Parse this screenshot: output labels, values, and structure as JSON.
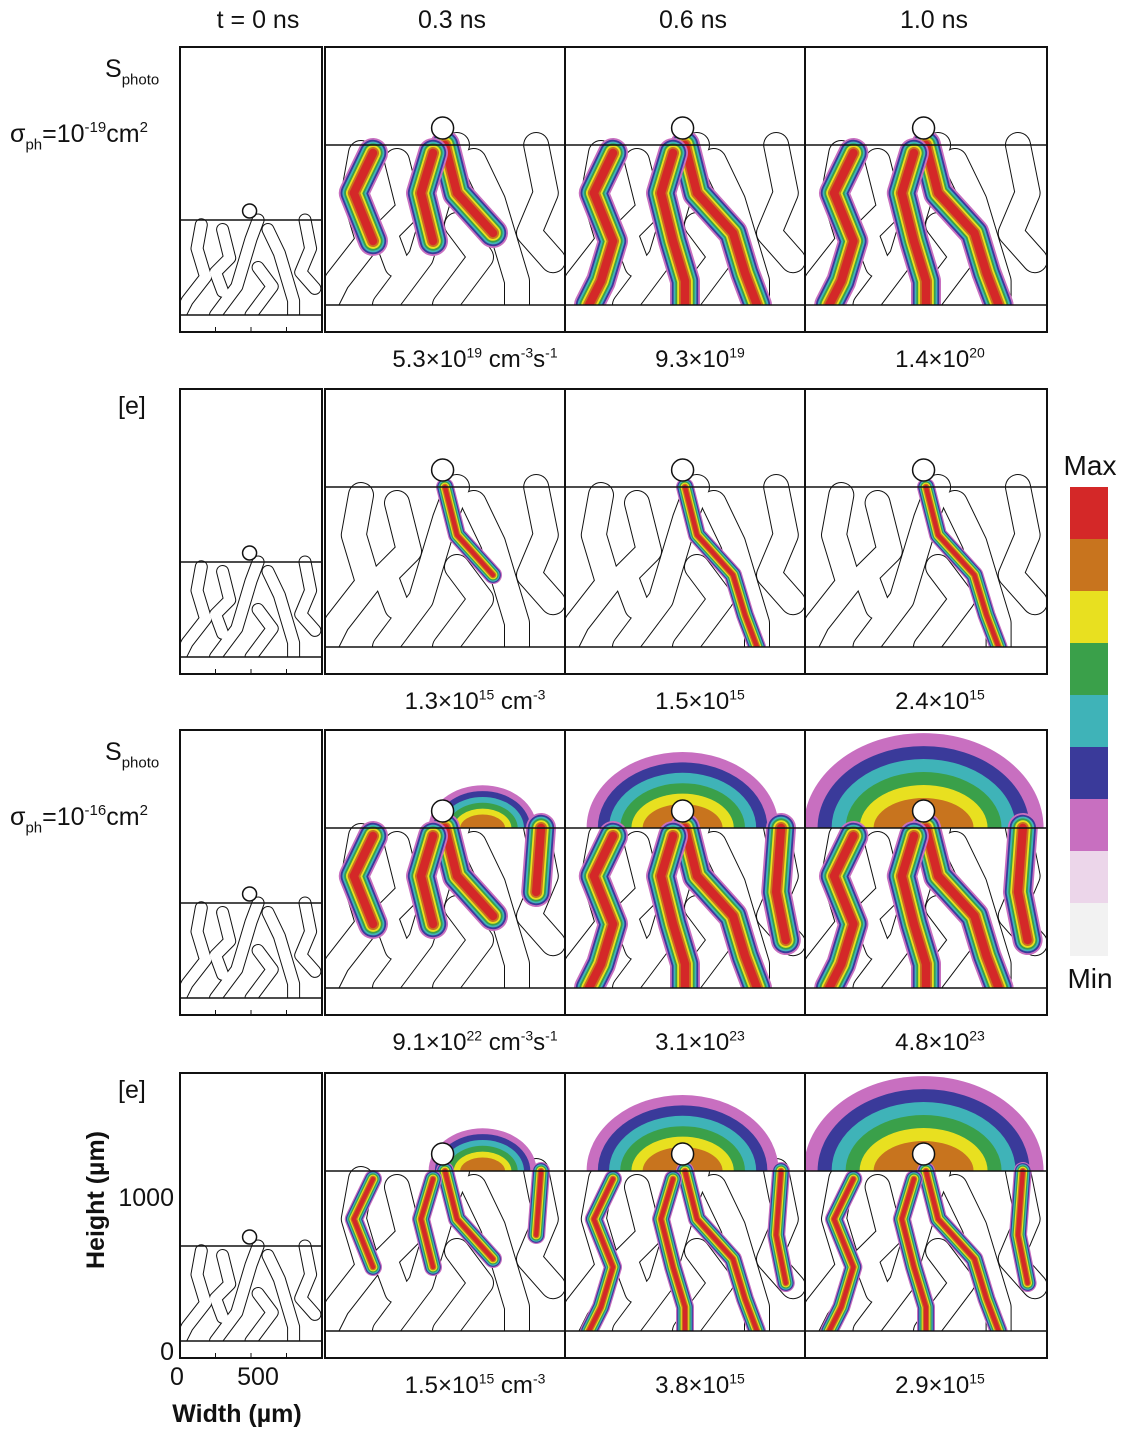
{
  "columns": [
    "t = 0 ns",
    "0.3 ns",
    "0.6 ns",
    "1.0 ns"
  ],
  "rows": [
    {
      "labels": [
        [
          "S",
          {
            "sub": "photo"
          }
        ],
        [
          "σ",
          {
            "sub": "ph"
          },
          "=10",
          {
            "sup": "-19"
          },
          "cm",
          {
            "sup": "2"
          }
        ]
      ],
      "peaks": [
        [
          "5.3×10",
          {
            "sup": "19"
          },
          " cm",
          {
            "sup": "-3"
          },
          "s",
          {
            "sup": "-1"
          }
        ],
        [
          "9.3×10",
          {
            "sup": "19"
          }
        ],
        [
          "1.4×10",
          {
            "sup": "20"
          }
        ]
      ]
    },
    {
      "labels": [
        [
          "[e]"
        ]
      ],
      "peaks": [
        [
          "1.3×10",
          {
            "sup": "15"
          },
          " cm",
          {
            "sup": "-3"
          }
        ],
        [
          "1.5×10",
          {
            "sup": "15"
          }
        ],
        [
          "2.4×10",
          {
            "sup": "15"
          }
        ]
      ]
    },
    {
      "labels": [
        [
          "S",
          {
            "sub": "photo"
          }
        ],
        [
          "σ",
          {
            "sub": "ph"
          },
          "=10",
          {
            "sup": "-16"
          },
          "cm",
          {
            "sup": "2"
          }
        ]
      ],
      "peaks": [
        [
          "9.1×10",
          {
            "sup": "22"
          },
          " cm",
          {
            "sup": "-3"
          },
          "s",
          {
            "sup": "-1"
          }
        ],
        [
          "3.1×10",
          {
            "sup": "23"
          }
        ],
        [
          "4.8×10",
          {
            "sup": "23"
          }
        ]
      ]
    },
    {
      "labels": [
        [
          "[e]"
        ]
      ],
      "peaks": [
        [
          "1.5×10",
          {
            "sup": "15"
          },
          " cm",
          {
            "sup": "-3"
          }
        ],
        [
          "3.8×10",
          {
            "sup": "15"
          }
        ],
        [
          "2.9×10",
          {
            "sup": "15"
          }
        ]
      ]
    }
  ],
  "colorbar": {
    "max": "Max",
    "min": "Min"
  },
  "axes": {
    "y_label": "Height (µm)",
    "y_ticks": [
      "1000",
      "0"
    ],
    "x_label": "Width (µm)",
    "x_ticks": [
      "0",
      "500"
    ]
  }
}
